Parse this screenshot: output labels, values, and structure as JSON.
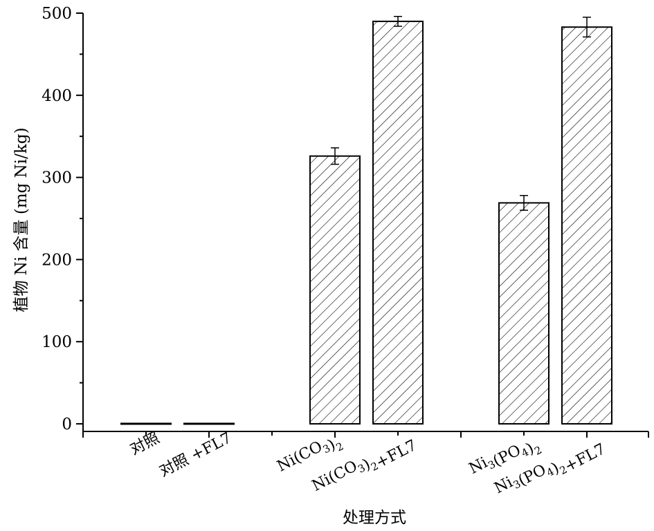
{
  "chart_data": {
    "type": "bar",
    "xlabel": "处理方式",
    "ylabel": "植物 Ni 含量 (mg Ni/kg)",
    "ylim": [
      0,
      500
    ],
    "yticks": [
      "0",
      "100",
      "200",
      "300",
      "400",
      "500"
    ],
    "categories": [
      {
        "label": "对照",
        "sub": []
      },
      {
        "label": "对照 +FL7",
        "sub": []
      },
      {
        "label": "Ni(CO3)2",
        "sub": [
          "3",
          "2"
        ]
      },
      {
        "label": "Ni(CO3)2+FL7",
        "sub": [
          "3",
          "2"
        ]
      },
      {
        "label": "Ni3(PO4)2",
        "sub": [
          "3",
          "4",
          "2"
        ]
      },
      {
        "label": "Ni3(PO4)2+FL7",
        "sub": [
          "3",
          "4",
          "2"
        ]
      }
    ],
    "groups": [
      [
        0,
        1
      ],
      [
        2,
        3
      ],
      [
        4,
        5
      ]
    ],
    "values": [
      0.5,
      0.5,
      326,
      490,
      269,
      483
    ],
    "errors": [
      0,
      0,
      10,
      6,
      9,
      12
    ],
    "bar_style": "diagonal hatch",
    "grid": false,
    "legend": "none"
  }
}
